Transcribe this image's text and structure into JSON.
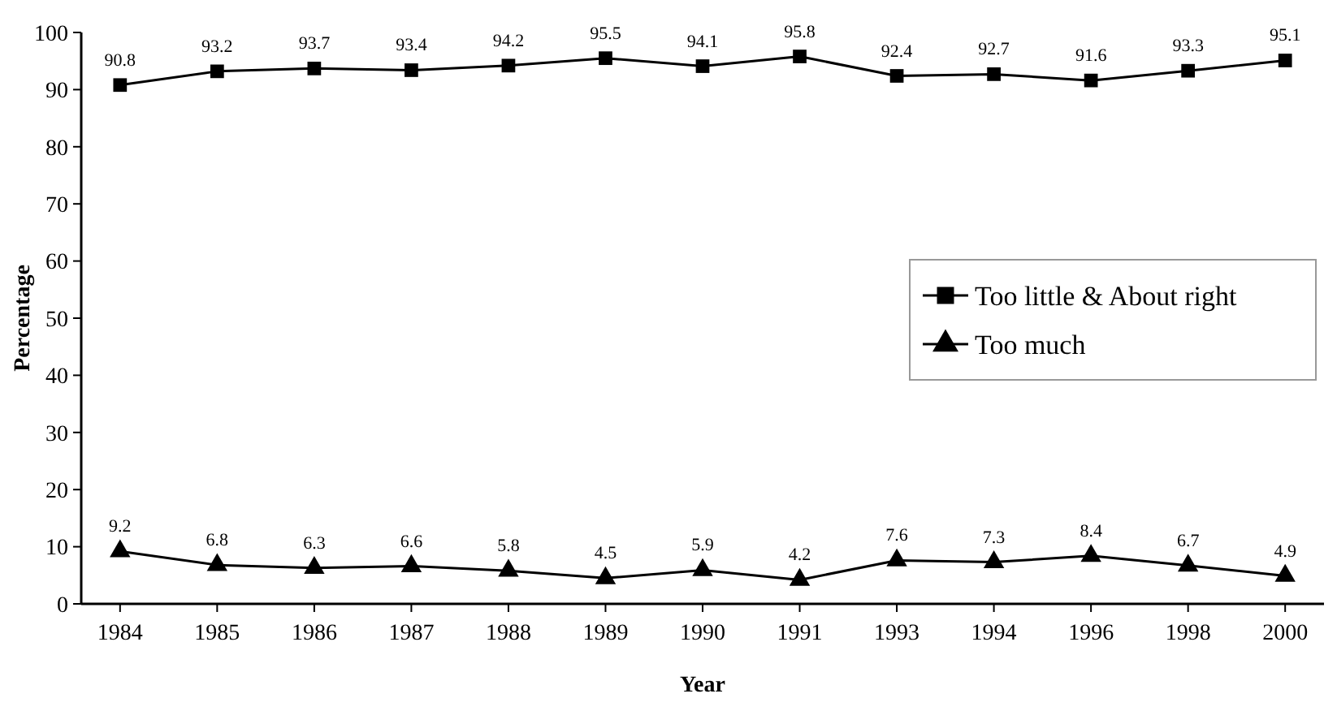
{
  "chart_data": {
    "type": "line",
    "xlabel": "Year",
    "ylabel": "Percentage",
    "categories": [
      "1984",
      "1985",
      "1986",
      "1987",
      "1988",
      "1989",
      "1990",
      "1991",
      "1993",
      "1994",
      "1996",
      "1998",
      "2000"
    ],
    "series": [
      {
        "name": "Too little & About right",
        "color": "#000000",
        "marker": "square",
        "values": [
          90.8,
          93.2,
          93.7,
          93.4,
          94.2,
          95.5,
          94.1,
          95.8,
          92.4,
          92.7,
          91.6,
          93.3,
          95.1
        ]
      },
      {
        "name": "Too much",
        "color": "#000000",
        "marker": "triangle",
        "values": [
          9.2,
          6.8,
          6.3,
          6.6,
          5.8,
          4.5,
          5.9,
          4.2,
          7.6,
          7.3,
          8.4,
          6.7,
          4.9
        ]
      }
    ],
    "ylim": [
      0,
      100
    ],
    "yticks": [
      0,
      10,
      20,
      30,
      40,
      50,
      60,
      70,
      80,
      90,
      100
    ],
    "data_labels": true,
    "legend": "right",
    "grid": false,
    "line_style": "solid"
  }
}
